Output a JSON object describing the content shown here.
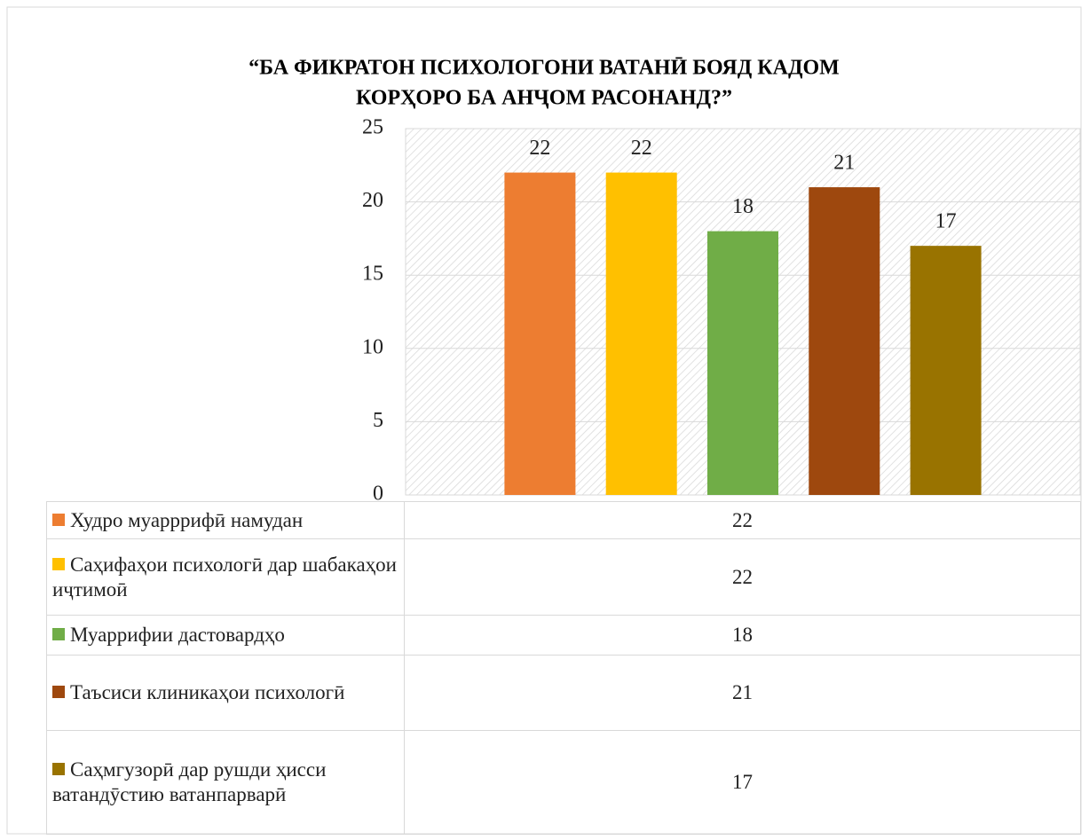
{
  "chart_data": {
    "type": "bar",
    "title_lines": [
      "“БА ФИКРАТОН ПСИХОЛОГОНИ ВАТАНӢ БОЯД КАДОМ",
      "КОРҲОРО БА АНҶОМ РАСОНАНД?”"
    ],
    "series": [
      {
        "name": "Худро муарррифӣ намудан",
        "color": "#ED7D31",
        "values": [
          22
        ]
      },
      {
        "name": "Саҳифаҳои психологӣ дар шабакаҳои иҷтимоӣ",
        "color": "#FFC000",
        "values": [
          22
        ]
      },
      {
        "name": "Муаррифии дастовардҳо",
        "color": "#70AD47",
        "values": [
          18
        ]
      },
      {
        "name": "Таъсиси клиникаҳои психологӣ",
        "color": "#9E480E",
        "values": [
          21
        ]
      },
      {
        "name": "Саҳмгузорӣ дар рушди ҳисси ватандӯстию ватанпарварӣ",
        "color": "#997300",
        "values": [
          17
        ]
      }
    ],
    "ylim": [
      0,
      25
    ],
    "yticks": [
      0,
      5,
      10,
      15,
      20,
      25
    ],
    "grid": true
  }
}
